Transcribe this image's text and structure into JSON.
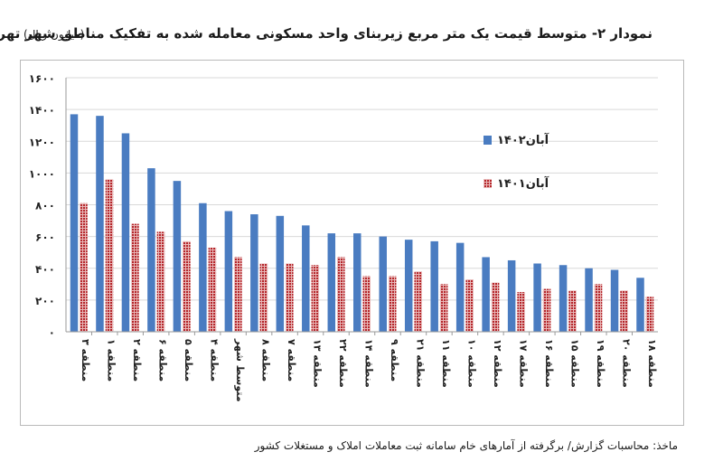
{
  "title": "نمودار ۲- متوسط قیمت یک متر مربع زیربنای واحد مسکونی معامله شده به تفکیک مناطق شهر تهران",
  "unit": "(میلیون ریال)",
  "source": "ماخذ: محاسبات گزارش/ برگرفته از آمارهای خام سامانه ثبت معاملات املاک و مستغلات کشور",
  "colors": {
    "series_1402": "#4a7cc1",
    "series_1401": "#b5262b",
    "grid": "#d9d9d9"
  },
  "chart_data": {
    "type": "bar",
    "title": "نمودار ۲- متوسط قیمت یک متر مربع زیربنای واحد مسکونی معامله شده به تفکیک مناطق شهر تهران",
    "ylabel": "(میلیون ریال)",
    "xlabel": "",
    "ylim": [
      0,
      1600
    ],
    "yticks": [
      0,
      200,
      400,
      600,
      800,
      1000,
      1200,
      1400,
      1600
    ],
    "ytick_labels": [
      "۰",
      "۲۰۰",
      "۴۰۰",
      "۶۰۰",
      "۸۰۰",
      "۱۰۰۰",
      "۱۲۰۰",
      "۱۴۰۰",
      "۱۶۰۰"
    ],
    "grid": true,
    "legend_position": "top-right",
    "categories": [
      "منطقه ۳",
      "منطقه ۱",
      "منطقه ۲",
      "منطقه ۶",
      "منطقه ۵",
      "منطقه ۴",
      "متوسط شهر",
      "منطقه ۸",
      "منطقه ۷",
      "منطقه ۱۳",
      "منطقه ۲۲",
      "منطقه ۱۴",
      "منطقه ۹",
      "منطقه ۲۱",
      "منطقه ۱۱",
      "منطقه ۱۰",
      "منطقه ۱۲",
      "منطقه ۱۷",
      "منطقه ۱۶",
      "منطقه ۱۵",
      "منطقه ۱۹",
      "منطقه ۲۰",
      "منطقه ۱۸"
    ],
    "series": [
      {
        "name": "آبان۱۴۰۲",
        "values": [
          1370,
          1360,
          1250,
          1030,
          950,
          810,
          760,
          740,
          730,
          670,
          620,
          620,
          600,
          580,
          570,
          560,
          470,
          450,
          430,
          420,
          400,
          390,
          340
        ]
      },
      {
        "name": "آبان۱۴۰۱",
        "values": [
          810,
          960,
          680,
          630,
          570,
          530,
          470,
          430,
          430,
          420,
          470,
          350,
          350,
          380,
          300,
          330,
          310,
          250,
          270,
          260,
          300,
          260,
          220
        ]
      }
    ]
  }
}
